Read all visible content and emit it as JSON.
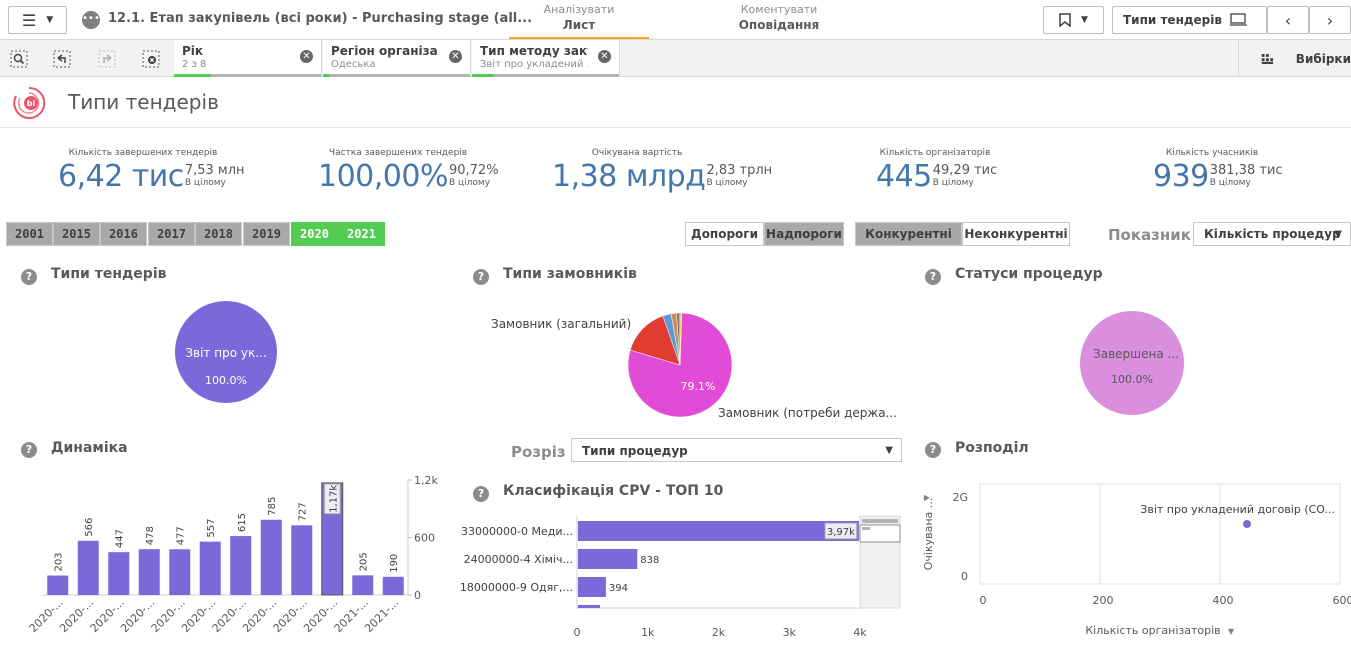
{
  "topbar": {
    "app_title": "12.1. Етап закупівель (всі роки) - Purchasing stage (all...",
    "mode_tabs": [
      {
        "top": "Аналізувати",
        "bottom": "Лист"
      },
      {
        "top": "Коментувати",
        "bottom": "Оповідання"
      }
    ],
    "sheet_selector": "Типи тендерів"
  },
  "selections": {
    "chips": [
      {
        "name": "Рік",
        "value": "2 з 8",
        "fill": 0.25
      },
      {
        "name": "Регіон організа...",
        "value": "Одеська",
        "fill": 0.04
      },
      {
        "name": "Тип методу заку...",
        "value": "Звіт про укладений ...",
        "fill": 0.15
      }
    ],
    "selections_label": "Вибірки"
  },
  "sheet": {
    "title": "Типи тендерів"
  },
  "kpis": [
    {
      "label": "Кількість завершених тендерів",
      "main": "6,42 тис",
      "side": "7,53 млн",
      "sub": "В цілому"
    },
    {
      "label": "Частка завершених тендерів",
      "main": "100,00%",
      "side": "90,72%",
      "sub": "В цілому"
    },
    {
      "label": "Очікувана вартість",
      "main": "1,38 млрд",
      "side": "2,83 трлн",
      "sub": "В цілому"
    },
    {
      "label": "Кількість організаторів",
      "main": "445",
      "side": "49,29 тис",
      "sub": "В цілому"
    },
    {
      "label": "Кількість учасників",
      "main": "939",
      "side": "381,38 тис",
      "sub": "В цілому"
    }
  ],
  "years": [
    {
      "label": "2001",
      "selected": false
    },
    {
      "label": "2015",
      "selected": false
    },
    {
      "label": "2016",
      "selected": false
    },
    {
      "label": "2017",
      "selected": false
    },
    {
      "label": "2018",
      "selected": false
    },
    {
      "label": "2019",
      "selected": false
    },
    {
      "label": "2020",
      "selected": true
    },
    {
      "label": "2021",
      "selected": true
    }
  ],
  "toggles": {
    "threshold": [
      "Допороги",
      "Надпороги"
    ],
    "competition": [
      "Конкурентні",
      "Неконкурентні"
    ]
  },
  "indicator": {
    "label": "Показник",
    "value": "Кількість процедур"
  },
  "slice": {
    "label": "Розріз",
    "value": "Типи процедур"
  },
  "panels": {
    "tender_types": "Типи тендерів",
    "customer_types": "Типи замовників",
    "procedure_statuses": "Статуси процедур",
    "dynamics": "Динаміка",
    "cpv": "Класифікація CPV - ТОП 10",
    "distribution": "Розподіл"
  },
  "chart_data": [
    {
      "type": "pie",
      "title": "Типи тендерів",
      "slices": [
        {
          "label": "Звіт про ук...",
          "value": 100.0,
          "pct_label": "100.0%"
        }
      ],
      "color": "#7b68d9"
    },
    {
      "type": "pie",
      "title": "Типи замовників",
      "slices": [
        {
          "label": "Замовник (потреби держа...",
          "value": 79.1,
          "pct_label": "79.1%",
          "color": "#e24bd6"
        },
        {
          "label": "Замовник (загальний)",
          "value": 15.0,
          "color": "#e03c31"
        },
        {
          "label": "",
          "value": 2.6,
          "color": "#5b9bd5"
        },
        {
          "label": "",
          "value": 1.7,
          "color": "#c98f5a"
        },
        {
          "label": "",
          "value": 1.0,
          "color": "#777777"
        },
        {
          "label": "",
          "value": 0.6,
          "color": "#f2c94c"
        }
      ]
    },
    {
      "type": "pie",
      "title": "Статуси процедур",
      "slices": [
        {
          "label": "Завершена ...",
          "value": 100.0,
          "pct_label": "100.0%"
        }
      ],
      "color": "#d98fdd"
    },
    {
      "type": "bar",
      "title": "Динаміка",
      "categories": [
        "2020-...",
        "2020-...",
        "2020-...",
        "2020-...",
        "2020-...",
        "2020-...",
        "2020-...",
        "2020-...",
        "2020-...",
        "2020-...",
        "2021-...",
        "2021-..."
      ],
      "values": [
        203,
        566,
        447,
        478,
        477,
        557,
        615,
        785,
        727,
        1170,
        205,
        190
      ],
      "value_labels": [
        "203",
        "566",
        "447",
        "478",
        "477",
        "557",
        "615",
        "785",
        "727",
        "1,17k",
        "205",
        "190"
      ],
      "y_ticks": [
        "1,2k",
        "600",
        "0"
      ],
      "ylim": [
        0,
        1200
      ]
    },
    {
      "type": "bar",
      "orientation": "horizontal",
      "title": "Класифікація CPV - ТОП 10",
      "categories": [
        "33000000-0 Меди...",
        "24000000-4 Хіміч...",
        "18000000-9 Одяг,..."
      ],
      "values": [
        3970,
        838,
        394
      ],
      "value_labels": [
        "3,97k",
        "838",
        "394"
      ],
      "x_ticks": [
        "0",
        "1k",
        "2k",
        "3k",
        "4k"
      ],
      "xlim": [
        0,
        4000
      ]
    },
    {
      "type": "scatter",
      "title": "Розподіл",
      "points": [
        {
          "label": "Звіт про укладений договір (CO...",
          "x": 445,
          "y": 1380000000
        }
      ],
      "xlabel": "Кількість організаторів",
      "ylabel": "Очікувана ...",
      "x_ticks": [
        "0",
        "200",
        "400",
        "600"
      ],
      "y_ticks": [
        "2G",
        "0"
      ],
      "xlim": [
        0,
        600
      ],
      "ylim": [
        0,
        2300000000
      ]
    }
  ]
}
